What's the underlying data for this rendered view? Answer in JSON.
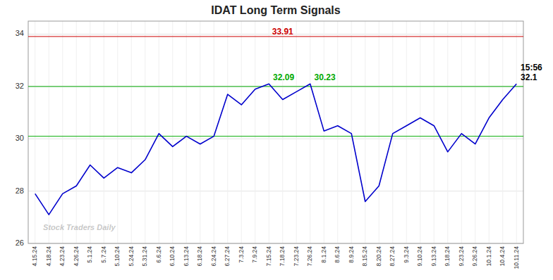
{
  "chart_data": {
    "type": "line",
    "title": "IDAT Long Term Signals",
    "categories": [
      "4.15.24",
      "4.18.24",
      "4.23.24",
      "4.26.24",
      "5.1.24",
      "5.7.24",
      "5.10.24",
      "5.24.24",
      "5.31.24",
      "6.6.24",
      "6.10.24",
      "6.13.24",
      "6.18.24",
      "6.24.24",
      "6.27.24",
      "7.3.24",
      "7.9.24",
      "7.15.24",
      "7.18.24",
      "7.23.24",
      "7.26.24",
      "8.1.24",
      "8.6.24",
      "8.9.24",
      "8.15.24",
      "8.20.24",
      "8.27.24",
      "9.3.24",
      "9.10.24",
      "9.13.24",
      "9.18.24",
      "9.23.24",
      "9.26.24",
      "10.1.24",
      "10.4.24",
      "10.11.24"
    ],
    "values": [
      27.9,
      27.1,
      27.9,
      28.2,
      29.0,
      28.5,
      28.9,
      28.7,
      29.2,
      30.2,
      29.7,
      30.1,
      29.8,
      30.1,
      31.7,
      31.3,
      31.9,
      32.1,
      31.5,
      31.8,
      32.1,
      30.3,
      30.5,
      30.2,
      27.6,
      28.2,
      30.2,
      30.5,
      30.8,
      30.5,
      29.5,
      30.2,
      29.8,
      30.8,
      31.5,
      32.1
    ],
    "color": "#0000cc",
    "ylim": [
      26,
      34.5
    ],
    "yticks": [
      26,
      28,
      30,
      32,
      34
    ],
    "grid": true,
    "reference_lines": [
      {
        "value": 33.91,
        "color": "#cc0000",
        "label": "33.91"
      },
      {
        "value": 32.0,
        "color": "#00aa00"
      },
      {
        "value": 30.1,
        "color": "#00aa00"
      }
    ],
    "annotations": [
      {
        "text": "32.09",
        "color": "#00aa00",
        "x": "7.15.24"
      },
      {
        "text": "30.23",
        "color": "#00aa00",
        "x": "7.26.24"
      },
      {
        "text": "15:56",
        "x": "10.11.24"
      },
      {
        "text": "32.1",
        "x": "10.11.24"
      }
    ],
    "watermark": "Stock Traders Daily"
  }
}
